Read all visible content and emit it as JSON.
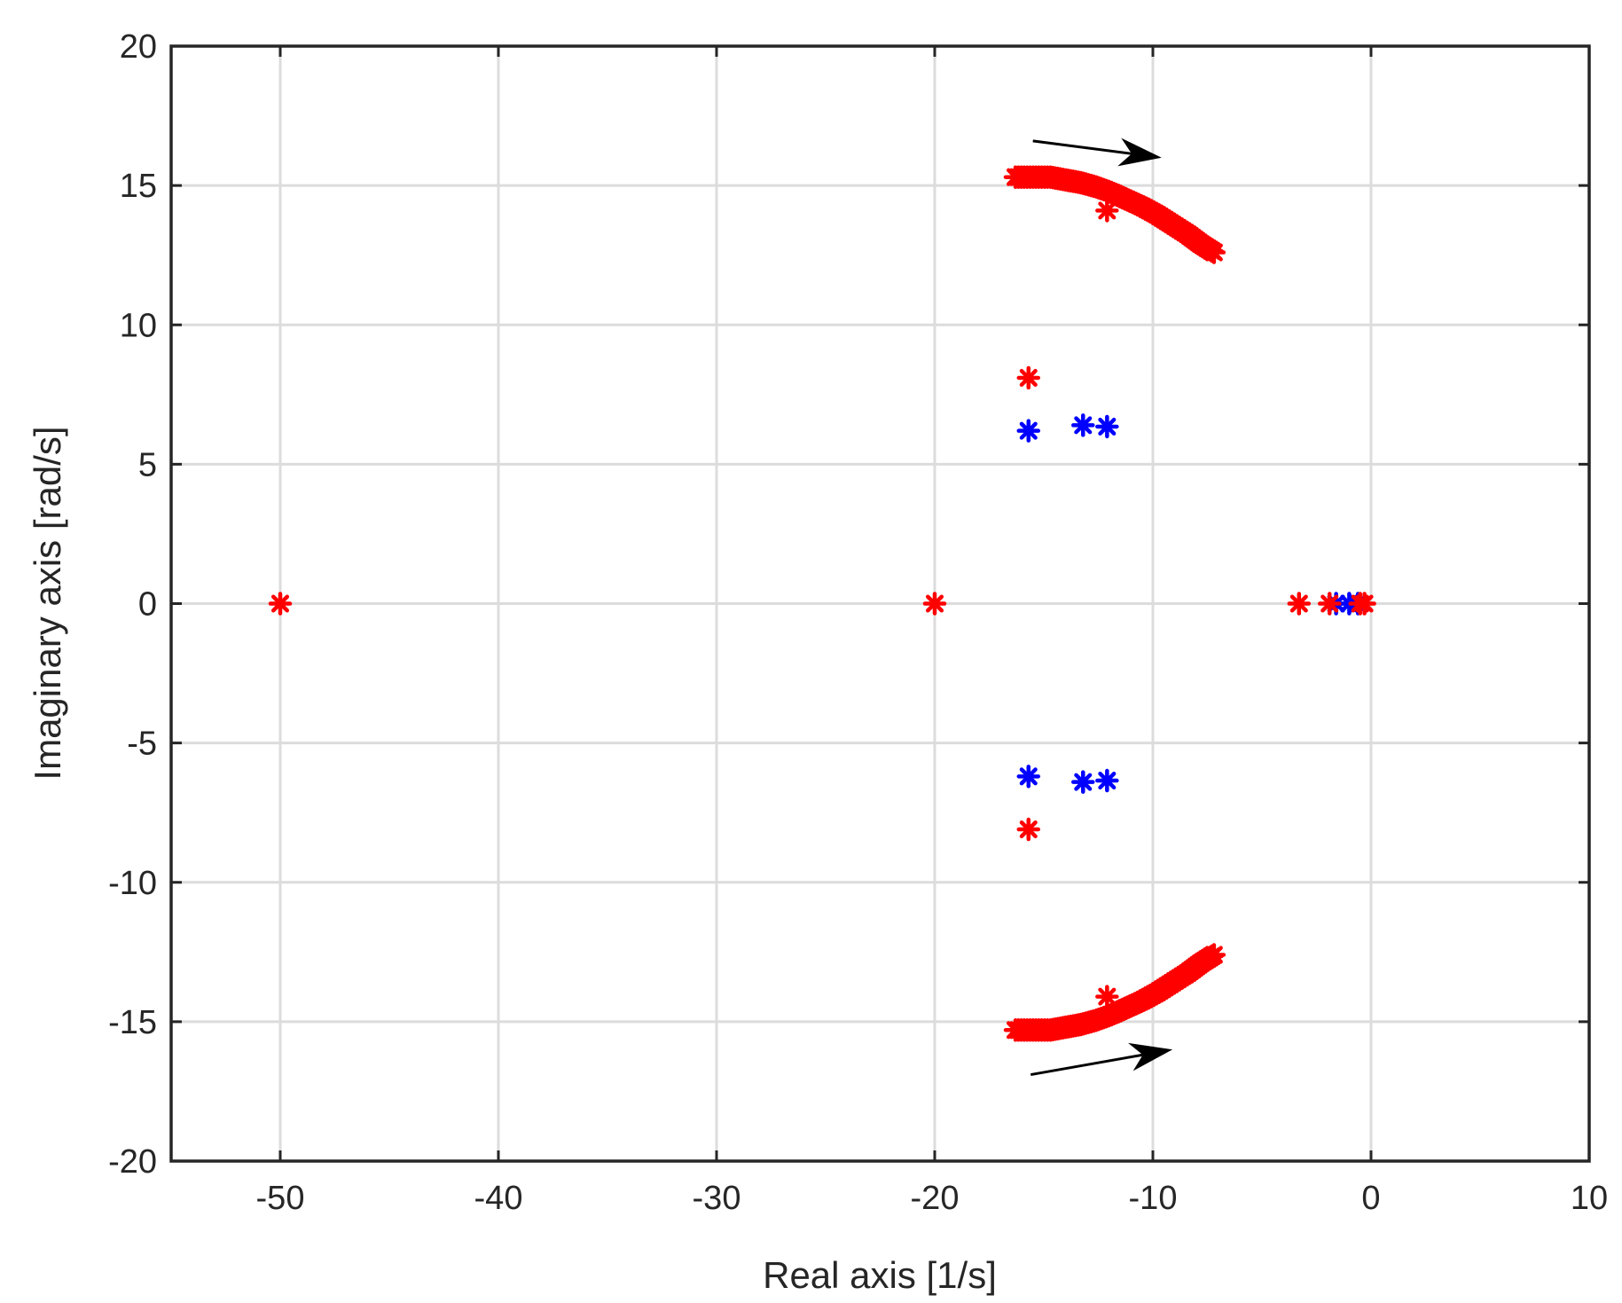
{
  "chart_data": {
    "type": "scatter",
    "xlabel": "Real axis [1/s]",
    "ylabel": "Imaginary axis [rad/s]",
    "xlim": [
      -55,
      10
    ],
    "ylim": [
      -20,
      20
    ],
    "xticks": [
      -50,
      -40,
      -30,
      -20,
      -10,
      0,
      10
    ],
    "yticks": [
      -20,
      -15,
      -10,
      -5,
      0,
      5,
      10,
      15,
      20
    ],
    "grid": true,
    "marker": "asterisk",
    "series": [
      {
        "color": "#0000ff",
        "x": [
          -15.7,
          -13.2,
          -12.1,
          -15.7,
          -13.2,
          -12.1,
          -1.6,
          -1.0,
          -0.6
        ],
        "y": [
          6.2,
          6.4,
          6.35,
          -6.2,
          -6.4,
          -6.35,
          0,
          0,
          0
        ]
      },
      {
        "color": "#ff0000",
        "x": [
          -50,
          -20,
          -15.7,
          -15.7,
          -12.1,
          -12.1,
          -3.3,
          -1.9,
          -0.5,
          -0.3
        ],
        "y": [
          0,
          0,
          8.1,
          -8.1,
          14.1,
          -14.1,
          0,
          0,
          0,
          0
        ]
      }
    ],
    "trajectories": [
      {
        "color": "#ff0000",
        "x": [
          -16.3,
          -15.5,
          -14.7,
          -14.0,
          -13.3,
          -12.6,
          -11.9,
          -11.2,
          -10.5,
          -9.8,
          -9.1,
          -8.4,
          -7.8,
          -7.2
        ],
        "y": [
          15.3,
          15.3,
          15.3,
          15.2,
          15.1,
          14.95,
          14.75,
          14.5,
          14.25,
          13.95,
          13.6,
          13.25,
          12.9,
          12.6
        ]
      },
      {
        "color": "#ff0000",
        "x": [
          -16.3,
          -15.5,
          -14.7,
          -14.0,
          -13.3,
          -12.6,
          -11.9,
          -11.2,
          -10.5,
          -9.8,
          -9.1,
          -8.4,
          -7.8,
          -7.2
        ],
        "y": [
          -15.3,
          -15.3,
          -15.3,
          -15.2,
          -15.1,
          -14.95,
          -14.75,
          -14.5,
          -14.25,
          -13.95,
          -13.6,
          -13.25,
          -12.9,
          -12.6
        ]
      }
    ],
    "arrows": [
      {
        "from": [
          -15.5,
          16.6
        ],
        "to": [
          -9.6,
          16.0
        ]
      },
      {
        "from": [
          -15.6,
          -16.9
        ],
        "to": [
          -9.1,
          -16.0
        ]
      }
    ]
  }
}
